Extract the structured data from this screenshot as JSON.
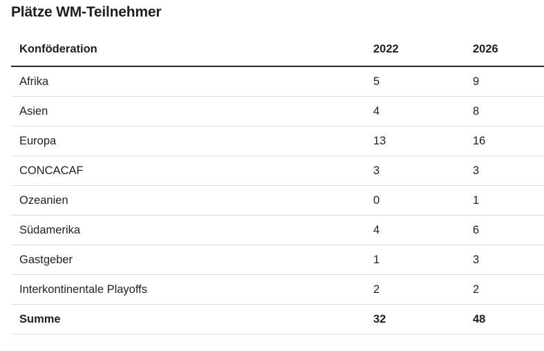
{
  "title": "Plätze WM-Teilnehmer",
  "table": {
    "headers": [
      "Konföderation",
      "2022",
      "2026"
    ],
    "rows": [
      [
        "Afrika",
        "5",
        "9"
      ],
      [
        "Asien",
        "4",
        "8"
      ],
      [
        "Europa",
        "13",
        "16"
      ],
      [
        "CONCACAF",
        "3",
        "3"
      ],
      [
        "Ozeanien",
        "0",
        "1"
      ],
      [
        "Südamerika",
        "4",
        "6"
      ],
      [
        "Gastgeber",
        "1",
        "3"
      ],
      [
        "Interkontinentale Playoffs",
        "2",
        "2"
      ],
      [
        "Summe",
        "32",
        "48"
      ]
    ]
  },
  "chart_data": {
    "type": "table",
    "title": "Plätze WM-Teilnehmer",
    "columns": [
      "Konföderation",
      "2022",
      "2026"
    ],
    "categories": [
      "Afrika",
      "Asien",
      "Europa",
      "CONCACAF",
      "Ozeanien",
      "Südamerika",
      "Gastgeber",
      "Interkontinentale Playoffs",
      "Summe"
    ],
    "series": [
      {
        "name": "2022",
        "values": [
          5,
          4,
          13,
          3,
          0,
          4,
          1,
          2,
          32
        ]
      },
      {
        "name": "2026",
        "values": [
          9,
          8,
          16,
          3,
          1,
          6,
          3,
          2,
          48
        ]
      }
    ]
  }
}
